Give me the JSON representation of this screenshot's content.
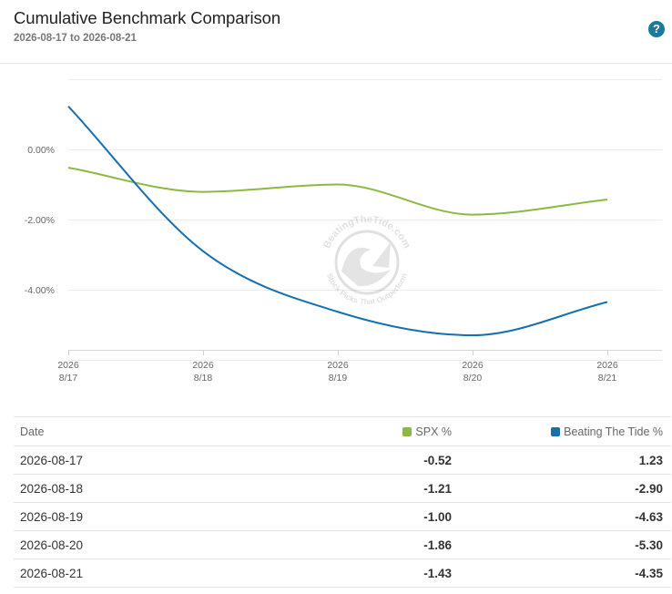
{
  "header": {
    "title": "Cumulative Benchmark Comparison",
    "subtitle": "2026-08-17 to 2026-08-21",
    "help_glyph": "?"
  },
  "chart_data": {
    "type": "line",
    "x": [
      "2026-08-17",
      "2026-08-18",
      "2026-08-19",
      "2026-08-20",
      "2026-08-21"
    ],
    "x_tick_labels": [
      [
        "2026",
        "8/17"
      ],
      [
        "2026",
        "8/18"
      ],
      [
        "2026",
        "8/19"
      ],
      [
        "2026",
        "8/20"
      ],
      [
        "2026",
        "8/21"
      ]
    ],
    "y_tick_labels": [
      "0.00%",
      "-2.00%",
      "-4.00%"
    ],
    "y_ticks": [
      0,
      -2,
      -4
    ],
    "series": [
      {
        "name": "SPX %",
        "color": "#8db843",
        "values": [
          -0.52,
          -1.21,
          -1.0,
          -1.86,
          -1.43
        ]
      },
      {
        "name": "Beating The Tide %",
        "color": "#1570b0",
        "values": [
          1.23,
          -2.9,
          -4.63,
          -5.3,
          -4.35
        ]
      }
    ],
    "xlabel": "",
    "ylabel": "",
    "grid": true,
    "watermark": {
      "top_text": "BeatingTheTide.com",
      "bottom_text": "Stock Picks That Outperform"
    }
  },
  "table": {
    "headers": {
      "date": "Date",
      "spx": "SPX %",
      "btt": "Beating The Tide %"
    },
    "rows": [
      {
        "date": "2026-08-17",
        "spx": "-0.52",
        "btt": "1.23"
      },
      {
        "date": "2026-08-18",
        "spx": "-1.21",
        "btt": "-2.90"
      },
      {
        "date": "2026-08-19",
        "spx": "-1.00",
        "btt": "-4.63"
      },
      {
        "date": "2026-08-20",
        "spx": "-1.86",
        "btt": "-5.30"
      },
      {
        "date": "2026-08-21",
        "spx": "-1.43",
        "btt": "-4.35"
      }
    ]
  }
}
